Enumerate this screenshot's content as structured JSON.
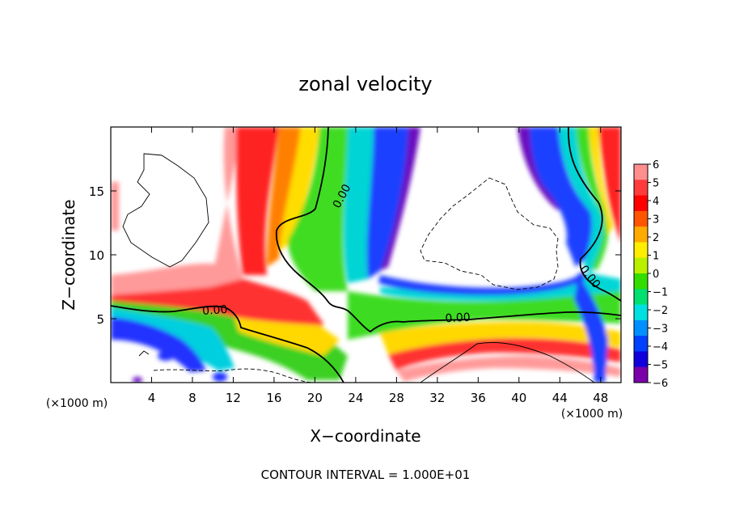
{
  "chart_data": {
    "type": "heatmap",
    "title": "zonal velocity",
    "xlabel": "X−coordinate",
    "ylabel": "Z−coordinate",
    "x_unit": "(×1000 m)",
    "y_unit": "(×1000 m)",
    "footer": "CONTOUR INTERVAL = 1.000E+01",
    "xlim": [
      0,
      50
    ],
    "ylim": [
      0,
      20
    ],
    "x_ticks": [
      4,
      8,
      12,
      16,
      20,
      24,
      28,
      32,
      36,
      40,
      44,
      48
    ],
    "y_ticks": [
      5,
      10,
      15
    ],
    "colorbar": {
      "levels": [
        6,
        5,
        4,
        3,
        2,
        1,
        0,
        -1,
        -2,
        -3,
        -4,
        -5,
        -6
      ],
      "labels": [
        "6",
        "5",
        "4",
        "3",
        "2",
        "1",
        "0",
        "−1",
        "−2",
        "−3",
        "−4",
        "−5",
        "−6"
      ],
      "colors": [
        "#ff8e8e",
        "#ff3b3b",
        "#ff0000",
        "#ff5500",
        "#ffaa00",
        "#ffee00",
        "#b8f000",
        "#33dd00",
        "#00e070",
        "#00e0e0",
        "#0090ff",
        "#0040ff",
        "#1000dd",
        "#7a00aa"
      ]
    },
    "contour_labels": [
      {
        "text": "0.00",
        "x": 22.6,
        "y": 14.6,
        "angle": -62
      },
      {
        "text": "0.00",
        "x": 10.2,
        "y": 5.7,
        "angle": -4
      },
      {
        "text": "0.00",
        "x": 34.0,
        "y": 5.1,
        "angle": -3
      },
      {
        "text": "0.00",
        "x": 47.0,
        "y": 8.3,
        "angle": 52
      }
    ]
  }
}
